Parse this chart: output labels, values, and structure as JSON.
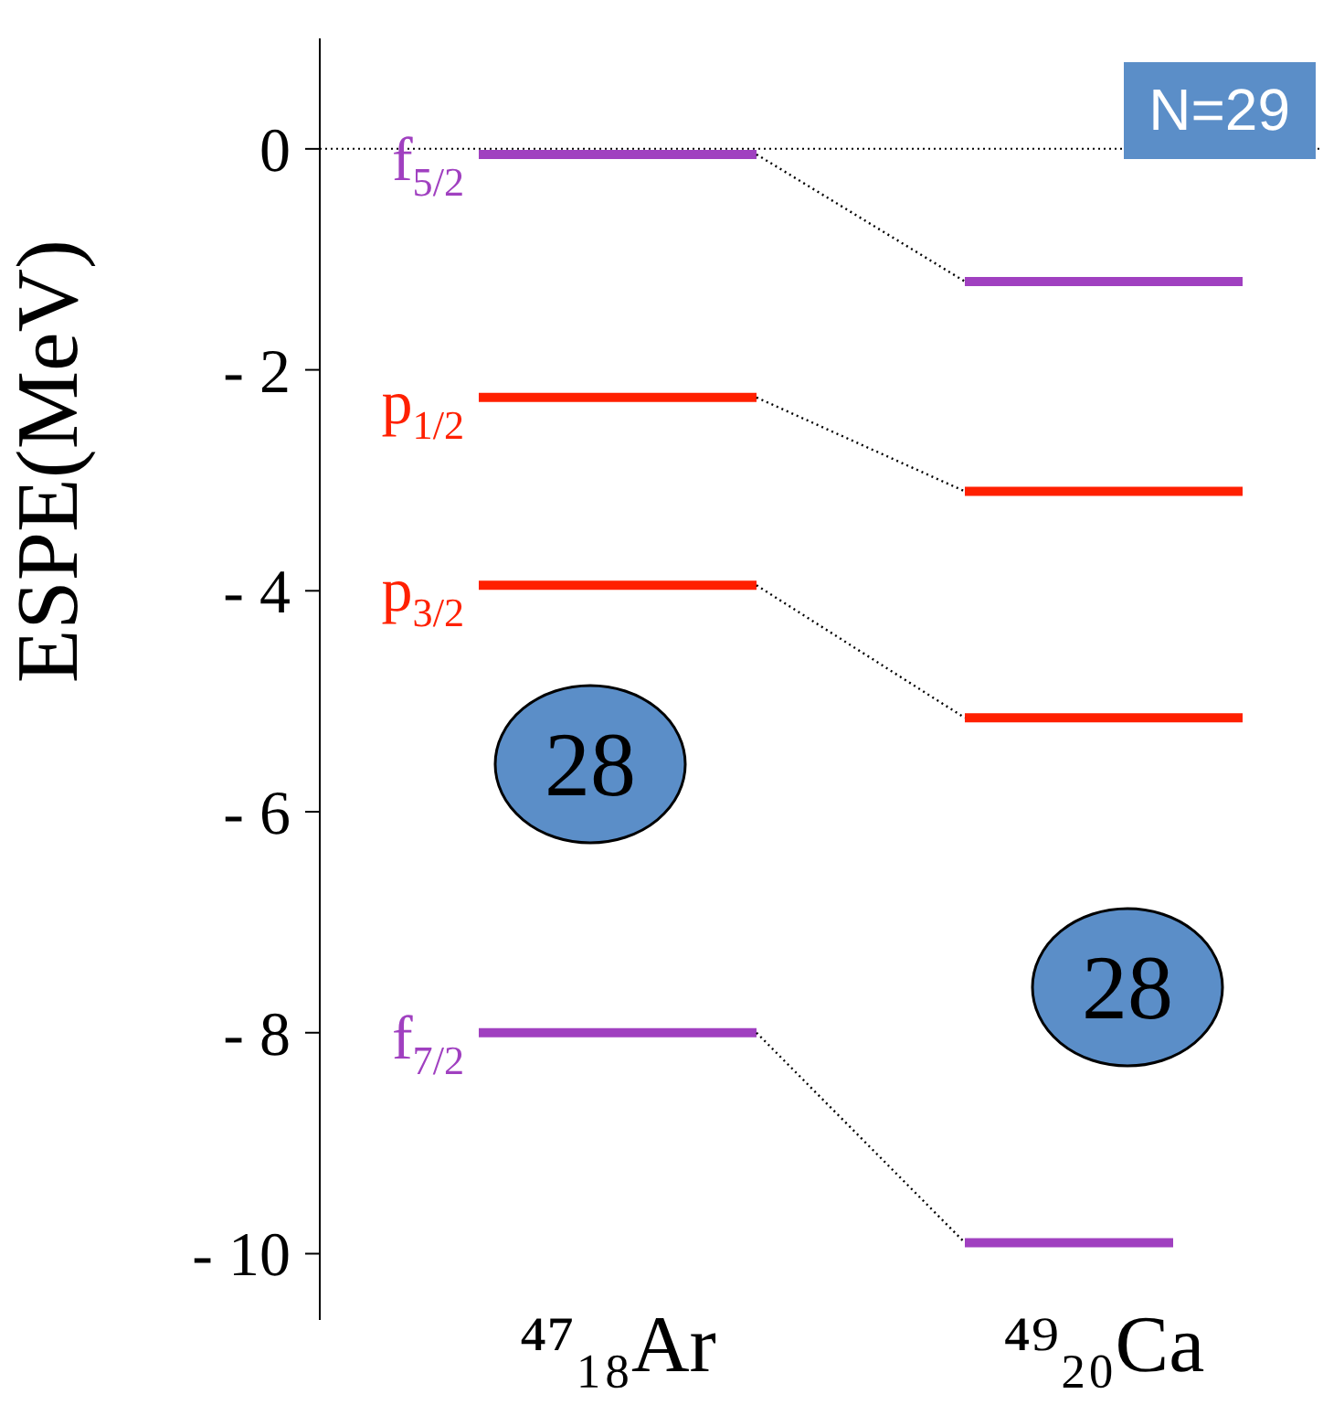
{
  "chart_data": {
    "type": "line",
    "ylabel": "ESPE(MeV)",
    "categories": [
      null,
      null,
      "⁴⁷₁₈Ar",
      null,
      null,
      null,
      null,
      null,
      null,
      "⁴⁹₂₀Ca",
      null,
      null
    ],
    "series": [
      {
        "name": "f$_{5/2}$",
        "color": "#a040c0",
        "values": [
          -0.05,
          -0.05,
          -0.05,
          -0.05,
          -0.05,
          null,
          null,
          -1.2,
          -1.2,
          -1.2,
          -1.2,
          -1.2
        ]
      },
      {
        "name": "p$_{1/2}$",
        "color": "#ff2000",
        "values": [
          -2.25,
          -2.25,
          -2.25,
          -2.25,
          -2.25,
          null,
          null,
          -3.1,
          -3.1,
          -3.1,
          -3.1,
          -3.1
        ]
      },
      {
        "name": "p$_{3/2}$",
        "color": "#ff2000",
        "values": [
          -3.95,
          -3.95,
          -3.95,
          -3.95,
          -3.95,
          null,
          null,
          -5.15,
          -5.15,
          -5.15,
          -5.15,
          -5.15
        ]
      },
      {
        "name": "f$_{7/2}$",
        "color": "#a040c0",
        "values": [
          -8.0,
          -8.0,
          -8.0,
          -8.0,
          -8.0,
          null,
          null,
          -9.9,
          -9.9,
          -9.9,
          -9.9,
          null
        ]
      },
      {
        "color": "#000000",
        "line_style": "dotted",
        "values": [
          null,
          null,
          null,
          null,
          -0.05,
          null,
          null,
          -1.2,
          null,
          null,
          null,
          null
        ]
      },
      {
        "color": "#000000",
        "line_style": "dotted",
        "values": [
          null,
          null,
          null,
          null,
          -2.25,
          null,
          null,
          -3.1,
          null,
          null,
          null,
          null
        ]
      },
      {
        "color": "#000000",
        "line_style": "dotted",
        "values": [
          null,
          null,
          null,
          null,
          -3.95,
          null,
          null,
          -5.15,
          null,
          null,
          null,
          null
        ]
      },
      {
        "color": "#000000",
        "line_style": "dotted",
        "values": [
          null,
          null,
          null,
          null,
          -8.0,
          null,
          null,
          -9.9,
          null,
          null,
          null,
          null
        ]
      }
    ],
    "ylim": [
      -10.6,
      1
    ],
    "yticks": [
      0,
      {
        "value": -2,
        "label": "- 2"
      },
      {
        "value": -4,
        "label": "- 4"
      },
      {
        "value": -6,
        "label": "- 6"
      },
      {
        "value": -8,
        "label": "- 8"
      },
      {
        "value": -10,
        "label": "- 10"
      }
    ],
    "ref_lines": [
      {
        "axis": "y",
        "value": 0,
        "line_style": "dotted"
      }
    ],
    "annotations": [
      "N=29",
      "28",
      "28"
    ]
  }
}
